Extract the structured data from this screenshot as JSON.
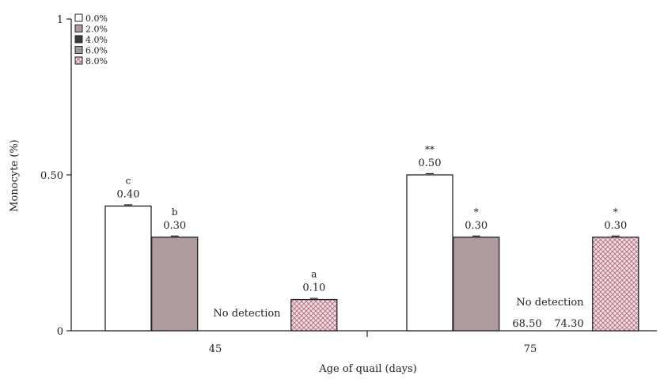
{
  "chart_data": {
    "type": "bar",
    "xlabel": "Age of quail (days)",
    "ylabel": "Monocyte  (%)",
    "categories": [
      "45",
      "75"
    ],
    "ylim": [
      0,
      1
    ],
    "yticks": [
      {
        "value": 0,
        "label": "0"
      },
      {
        "value": 0.5,
        "label": "0.50"
      },
      {
        "value": 1,
        "label": "1"
      }
    ],
    "grid": false,
    "legend_position": "top-left",
    "series": [
      {
        "name": "0.0%",
        "fill": "#ffffff",
        "pattern": "none",
        "values": [
          0.4,
          0.5
        ],
        "value_labels": [
          "0.40",
          "0.50"
        ],
        "sig_labels": [
          "c",
          "**"
        ]
      },
      {
        "name": "2.0%",
        "fill": "#ad9b9e",
        "pattern": "none",
        "values": [
          0.3,
          0.3
        ],
        "value_labels": [
          "0.30",
          "0.30"
        ],
        "sig_labels": [
          "b",
          "*"
        ]
      },
      {
        "name": "4.0%",
        "fill": "#3a3a3a",
        "pattern": "none",
        "values": [
          0,
          0
        ],
        "value_labels": [
          "",
          ""
        ],
        "sig_labels": [
          "",
          ""
        ]
      },
      {
        "name": "6.0%",
        "fill": "#9a9a9a",
        "pattern": "none",
        "values": [
          0,
          0
        ],
        "value_labels": [
          "",
          ""
        ],
        "sig_labels": [
          "",
          ""
        ]
      },
      {
        "name": "8.0%",
        "fill": "#f3dde3",
        "pattern": "crosshatch",
        "values": [
          0.1,
          0.3
        ],
        "value_labels": [
          "0.10",
          "0.30"
        ],
        "sig_labels": [
          "a",
          "*"
        ]
      }
    ],
    "annotations": [
      {
        "text": "No detection",
        "category": "45"
      },
      {
        "text": "No detection",
        "category": "75"
      },
      {
        "text": "68.50",
        "category": "75"
      },
      {
        "text": "74.30",
        "category": "75"
      }
    ]
  }
}
